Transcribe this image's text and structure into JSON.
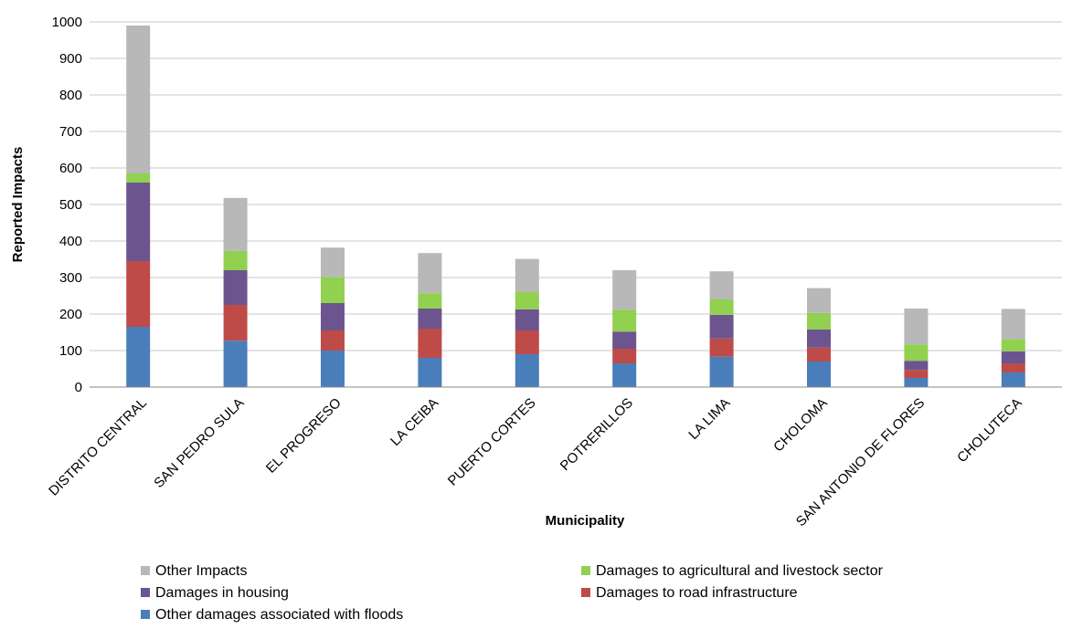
{
  "chart_data": {
    "type": "bar",
    "stacked": true,
    "xlabel": "Municipality",
    "ylabel": "Reported Impacts",
    "ylim": [
      0,
      1000
    ],
    "yticks": [
      0,
      100,
      200,
      300,
      400,
      500,
      600,
      700,
      800,
      900,
      1000
    ],
    "grid": true,
    "legend_position": "bottom",
    "categories": [
      "DISTRITO CENTRAL",
      "SAN PEDRO SULA",
      "EL PROGRESO",
      "LA CEIBA",
      "PUERTO CORTES",
      "POTRERILLOS",
      "LA LIMA",
      "CHOLOMA",
      "SAN ANTONIO DE FLORES",
      "CHOLUTECA"
    ],
    "series": [
      {
        "name": "Other damages associated with floods",
        "color": "#4a7ebb",
        "values": [
          165,
          127,
          100,
          80,
          90,
          65,
          83,
          70,
          25,
          40
        ]
      },
      {
        "name": "Damages to road infrastructure",
        "color": "#be4b48",
        "values": [
          180,
          98,
          55,
          80,
          65,
          40,
          50,
          38,
          22,
          25
        ]
      },
      {
        "name": "Damages in housing",
        "color": "#6c558f",
        "values": [
          215,
          95,
          75,
          55,
          58,
          47,
          65,
          50,
          25,
          33
        ]
      },
      {
        "name": "Damages to agricultural and livestock sector",
        "color": "#92d050",
        "values": [
          25,
          53,
          72,
          42,
          48,
          60,
          42,
          45,
          45,
          33
        ]
      },
      {
        "name": "Other Impacts",
        "color": "#b8b8b8",
        "values": [
          405,
          145,
          80,
          110,
          90,
          108,
          77,
          68,
          98,
          83
        ]
      }
    ],
    "legend_order": [
      "Other Impacts",
      "Damages to agricultural and livestock sector",
      "Damages in housing",
      "Damages to road infrastructure",
      "Other damages associated with floods"
    ]
  }
}
